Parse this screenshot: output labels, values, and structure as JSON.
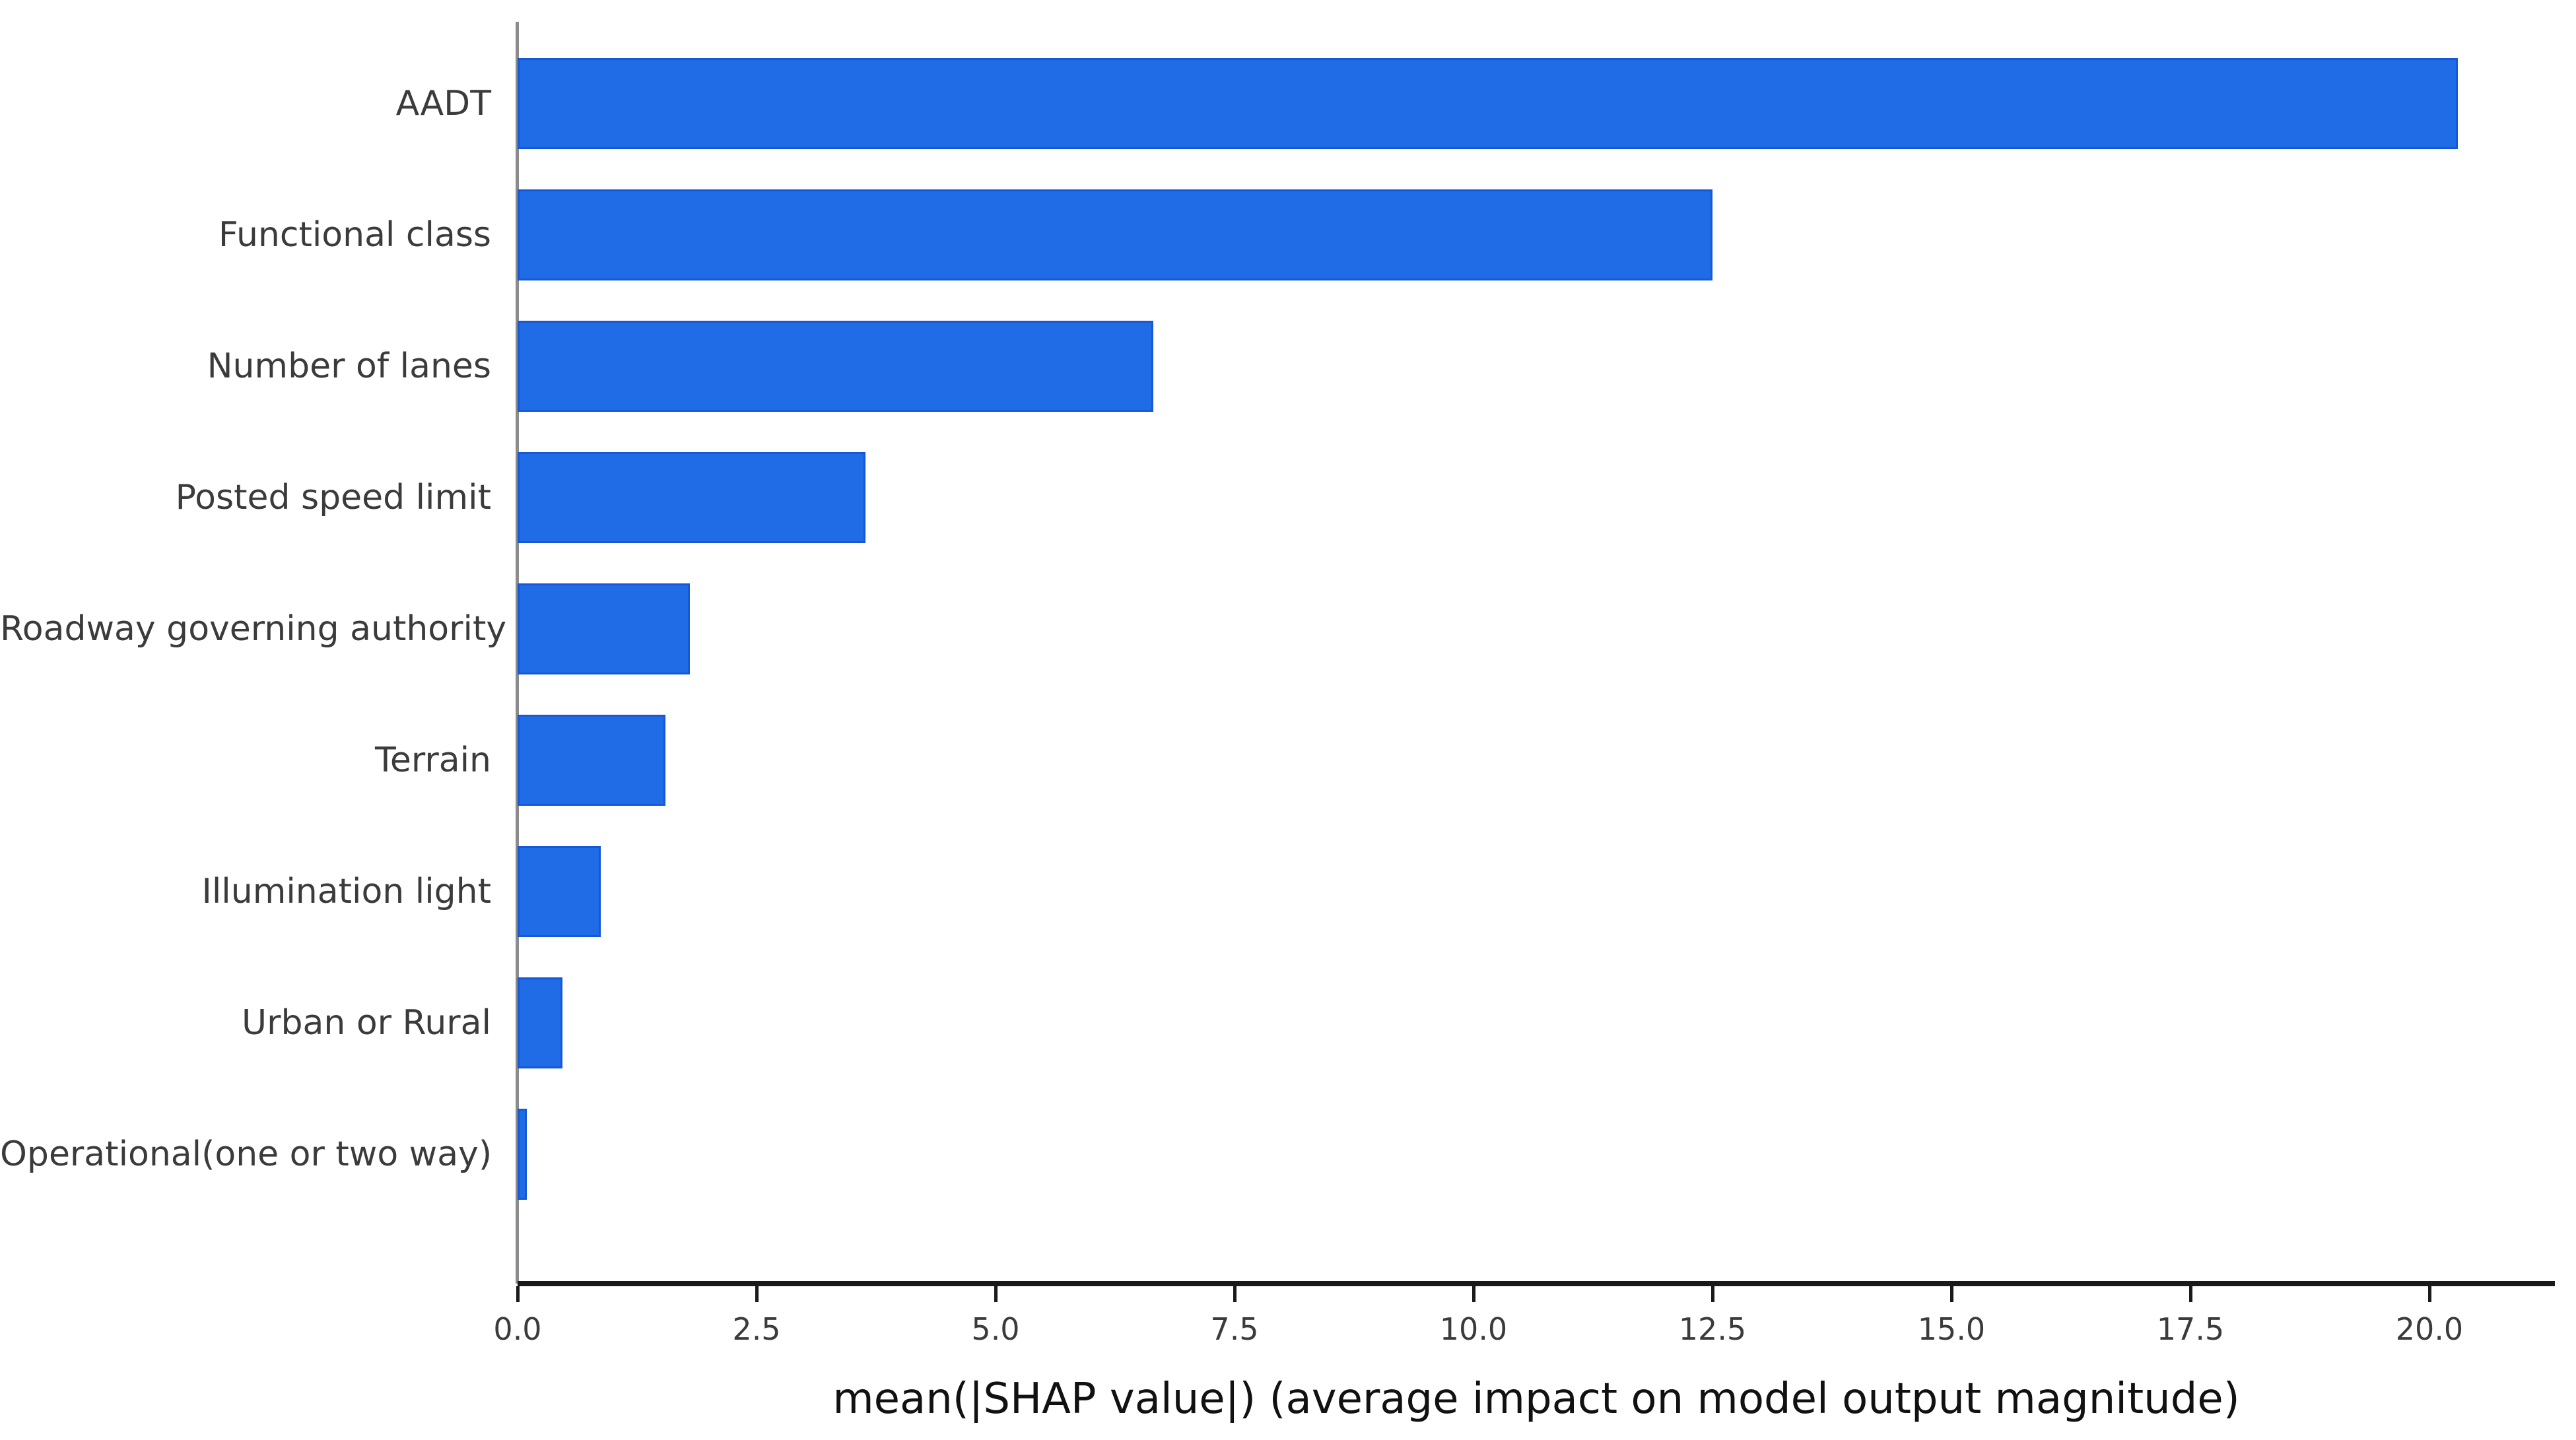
{
  "chart_data": {
    "type": "bar",
    "orientation": "horizontal",
    "title": "",
    "categories": [
      "AADT",
      "Functional class",
      "Number of lanes",
      "Posted speed limit",
      "Roadway governing authority",
      "Terrain",
      "Illumination light",
      "Urban or Rural",
      "Operational(one or two way)"
    ],
    "values": [
      20.3,
      12.5,
      6.65,
      3.64,
      1.8,
      1.55,
      0.87,
      0.47,
      0.1
    ],
    "xlabel": "mean(|SHAP value|) (average impact on model output magnitude)",
    "ylabel": "",
    "xlim": [
      0,
      21.3
    ],
    "xticks": [
      0.0,
      2.5,
      5.0,
      7.5,
      10.0,
      12.5,
      15.0,
      17.5,
      20.0
    ],
    "xtick_labels": [
      "0.0",
      "2.5",
      "5.0",
      "7.5",
      "10.0",
      "12.5",
      "15.0",
      "17.5",
      "20.0"
    ],
    "grid": false,
    "legend": false,
    "colors": {
      "bar_fill": "#1f6ce6",
      "bar_edge": "#1659d6",
      "axis_line": "#1a1a1a",
      "left_spine": "#8c8c8c",
      "tick_label": "#3b3b3b",
      "category_label": "#3b3b3b",
      "xlabel_text": "#111111",
      "background": "#ffffff"
    }
  }
}
